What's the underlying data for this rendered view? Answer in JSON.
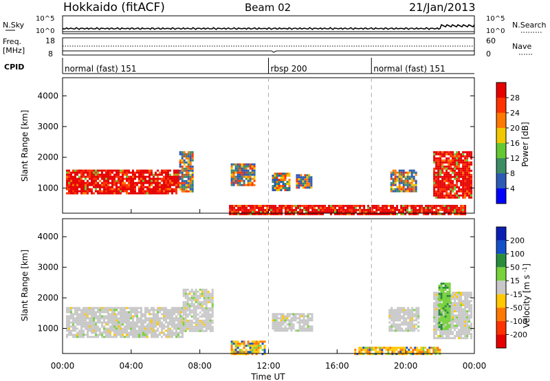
{
  "header": {
    "radar": "Hokkaido (fitACF)",
    "beam": "Beam 02",
    "date": "21/Jan/2013"
  },
  "strip_labels": {
    "nsky": "N.Sky",
    "nsearch": "N.Search",
    "freq": "Freq.",
    "freq_unit": "[MHz]",
    "nave": "Nave",
    "cpid": "CPID",
    "log_top": "10^5",
    "log_bottom": "10^0",
    "freq_top": "18",
    "freq_bottom": "8",
    "nave_top": "60",
    "nave_bottom": "0"
  },
  "cpid_segments": [
    {
      "label": "normal (fast) 151",
      "start_h": 0,
      "end_h": 12
    },
    {
      "label": "rbsp 200",
      "start_h": 12,
      "end_h": 18
    },
    {
      "label": "normal (fast) 151",
      "start_h": 18,
      "end_h": 24
    }
  ],
  "axes": {
    "ylabel": "Slant Range [km]",
    "yticks": [
      "1000",
      "2000",
      "3000",
      "4000"
    ],
    "yrange_km": [
      180,
      4590
    ],
    "xticks": [
      "00:00",
      "04:00",
      "08:00",
      "12:00",
      "16:00",
      "20:00",
      "00:00"
    ],
    "xlabel": "Time UT",
    "xrange_h": [
      0,
      24
    ]
  },
  "chart_data": [
    {
      "type": "heatmap",
      "name": "power",
      "colorbar_label": "Power [dB]",
      "colorbar_ticks": [
        "4",
        "8",
        "12",
        "16",
        "20",
        "24",
        "28"
      ],
      "colorbar_colors": [
        "#0000ff",
        "#2c5ab4",
        "#3c8c64",
        "#64c832",
        "#f0c800",
        "#ff7800",
        "#ff3200",
        "#e60000"
      ],
      "regions": [
        {
          "t0": 0.2,
          "t1": 6.8,
          "r0": 800,
          "r1": 1600,
          "level": "high"
        },
        {
          "t0": 6.8,
          "t1": 7.6,
          "r0": 900,
          "r1": 2200,
          "level": "medium"
        },
        {
          "t0": 9.8,
          "t1": 11.2,
          "r0": 1100,
          "r1": 1800,
          "level": "medium"
        },
        {
          "t0": 12.2,
          "t1": 13.2,
          "r0": 900,
          "r1": 1500,
          "level": "medium"
        },
        {
          "t0": 13.6,
          "t1": 14.5,
          "r0": 1000,
          "r1": 1450,
          "level": "medium"
        },
        {
          "t0": 19.1,
          "t1": 20.6,
          "r0": 900,
          "r1": 1600,
          "level": "medium"
        },
        {
          "t0": 21.6,
          "t1": 23.8,
          "r0": 700,
          "r1": 2200,
          "level": "high"
        },
        {
          "t0": 9.7,
          "t1": 23.5,
          "r0": 180,
          "r1": 450,
          "level": "high"
        }
      ]
    },
    {
      "type": "heatmap",
      "name": "velocity",
      "colorbar_label": "Velocity [m s^-1]",
      "colorbar_ticks": [
        "200",
        "100",
        "50",
        "15",
        "-15",
        "-50",
        "-100",
        "-200"
      ],
      "colorbar_colors": [
        "#0a1eb4",
        "#1450c8",
        "#288c3c",
        "#78d23c",
        "#c8c8c8",
        "#ffc800",
        "#ff7800",
        "#ff3200",
        "#e60000"
      ],
      "regions": [
        {
          "t0": 0.2,
          "t1": 7.0,
          "r0": 700,
          "r1": 1700,
          "level": "ground"
        },
        {
          "t0": 7.0,
          "t1": 8.8,
          "r0": 900,
          "r1": 2300,
          "level": "ground"
        },
        {
          "t0": 12.2,
          "t1": 14.6,
          "r0": 900,
          "r1": 1500,
          "level": "ground"
        },
        {
          "t0": 19.0,
          "t1": 20.8,
          "r0": 900,
          "r1": 1700,
          "level": "ground"
        },
        {
          "t0": 21.6,
          "t1": 23.8,
          "r0": 700,
          "r1": 2200,
          "level": "ground"
        },
        {
          "t0": 21.9,
          "t1": 22.6,
          "r0": 1000,
          "r1": 2500,
          "level": "positive"
        },
        {
          "t0": 9.8,
          "t1": 11.8,
          "r0": 180,
          "r1": 600,
          "level": "negative"
        },
        {
          "t0": 17.0,
          "t1": 22.0,
          "r0": 180,
          "r1": 400,
          "level": "negative"
        }
      ]
    }
  ]
}
